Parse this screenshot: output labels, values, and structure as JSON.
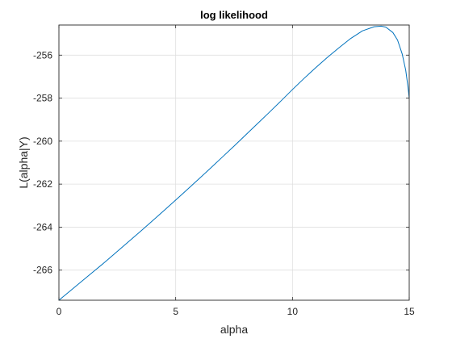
{
  "chart_data": {
    "type": "line",
    "title": "log likelihood",
    "xlabel": "alpha",
    "ylabel": "L(alpha|Y)",
    "xlim": [
      0,
      15
    ],
    "ylim": [
      -267.4,
      -254.6
    ],
    "xticks": [
      0,
      5,
      10,
      15
    ],
    "xtick_labels": [
      "0",
      "5",
      "10",
      "15"
    ],
    "yticks": [
      -266,
      -264,
      -262,
      -260,
      -258,
      -256
    ],
    "ytick_labels": [
      "-266",
      "-264",
      "-262",
      "-260",
      "-258",
      "-256"
    ],
    "grid": true,
    "legend": "none",
    "series": [
      {
        "color": "#0072bd",
        "x": [
          0,
          0.5,
          1,
          1.5,
          2,
          2.5,
          3,
          3.5,
          4,
          4.5,
          5,
          5.5,
          6,
          6.5,
          7,
          7.5,
          8,
          8.5,
          9,
          9.5,
          10,
          10.5,
          11,
          11.5,
          12,
          12.5,
          13,
          13.5,
          13.8,
          14,
          14.3,
          14.5,
          14.7,
          14.85,
          14.95,
          15
        ],
        "y": [
          -267.4,
          -266.95,
          -266.5,
          -266.05,
          -265.6,
          -265.13,
          -264.66,
          -264.19,
          -263.71,
          -263.23,
          -262.74,
          -262.25,
          -261.75,
          -261.25,
          -260.74,
          -260.23,
          -259.71,
          -259.19,
          -258.67,
          -258.14,
          -257.6,
          -257.08,
          -256.58,
          -256.1,
          -255.65,
          -255.22,
          -254.87,
          -254.68,
          -254.65,
          -254.7,
          -254.95,
          -255.3,
          -255.95,
          -256.7,
          -257.5,
          -258.0
        ]
      }
    ]
  }
}
